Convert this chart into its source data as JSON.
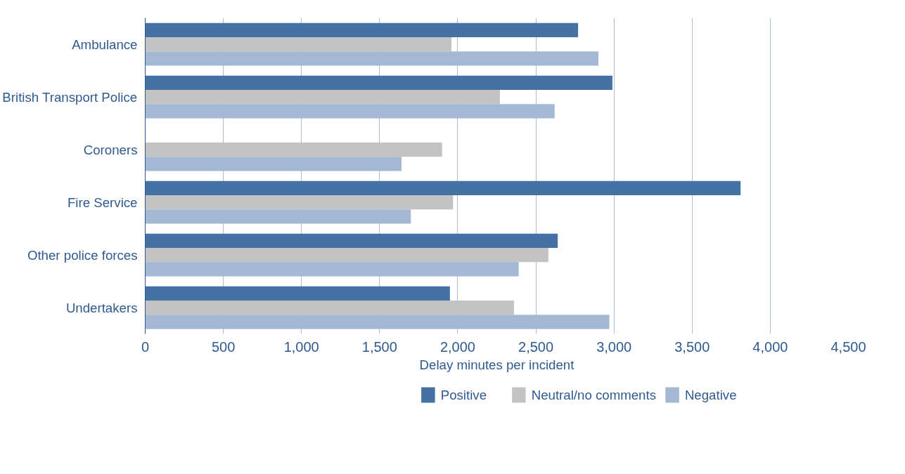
{
  "chart_data": {
    "type": "bar",
    "orientation": "horizontal",
    "xlabel": "Delay minutes per incident",
    "categories": [
      "Ambulance",
      "British Transport Police",
      "Coroners",
      "Fire Service",
      "Other police forces",
      "Undertakers"
    ],
    "series": [
      {
        "name": "Positive",
        "color": "#4472a4",
        "values": [
          2770,
          2990,
          null,
          3810,
          2640,
          1950
        ]
      },
      {
        "name": "Neutral/no comments",
        "color": "#c3c3c3",
        "values": [
          1960,
          2270,
          1900,
          1970,
          2580,
          2360
        ]
      },
      {
        "name": "Negative",
        "color": "#a2b8d3",
        "values": [
          2900,
          2620,
          1640,
          1700,
          2390,
          2970
        ]
      }
    ],
    "xlim": [
      0,
      4500
    ],
    "xticks": [
      0,
      {
        "value": 500,
        "label": "500"
      },
      {
        "value": 1000,
        "label": "1,000"
      },
      {
        "value": 1500,
        "label": "1,500"
      },
      {
        "value": 2000,
        "label": "2,000"
      },
      {
        "value": 2500,
        "label": "2,500"
      },
      {
        "value": 3000,
        "label": "3,000"
      },
      {
        "value": 3500,
        "label": "3,500"
      },
      {
        "value": 4000,
        "label": "4,000"
      },
      {
        "value": 4500,
        "label": "4,500"
      }
    ],
    "grid": "x",
    "legend": "bottom"
  }
}
